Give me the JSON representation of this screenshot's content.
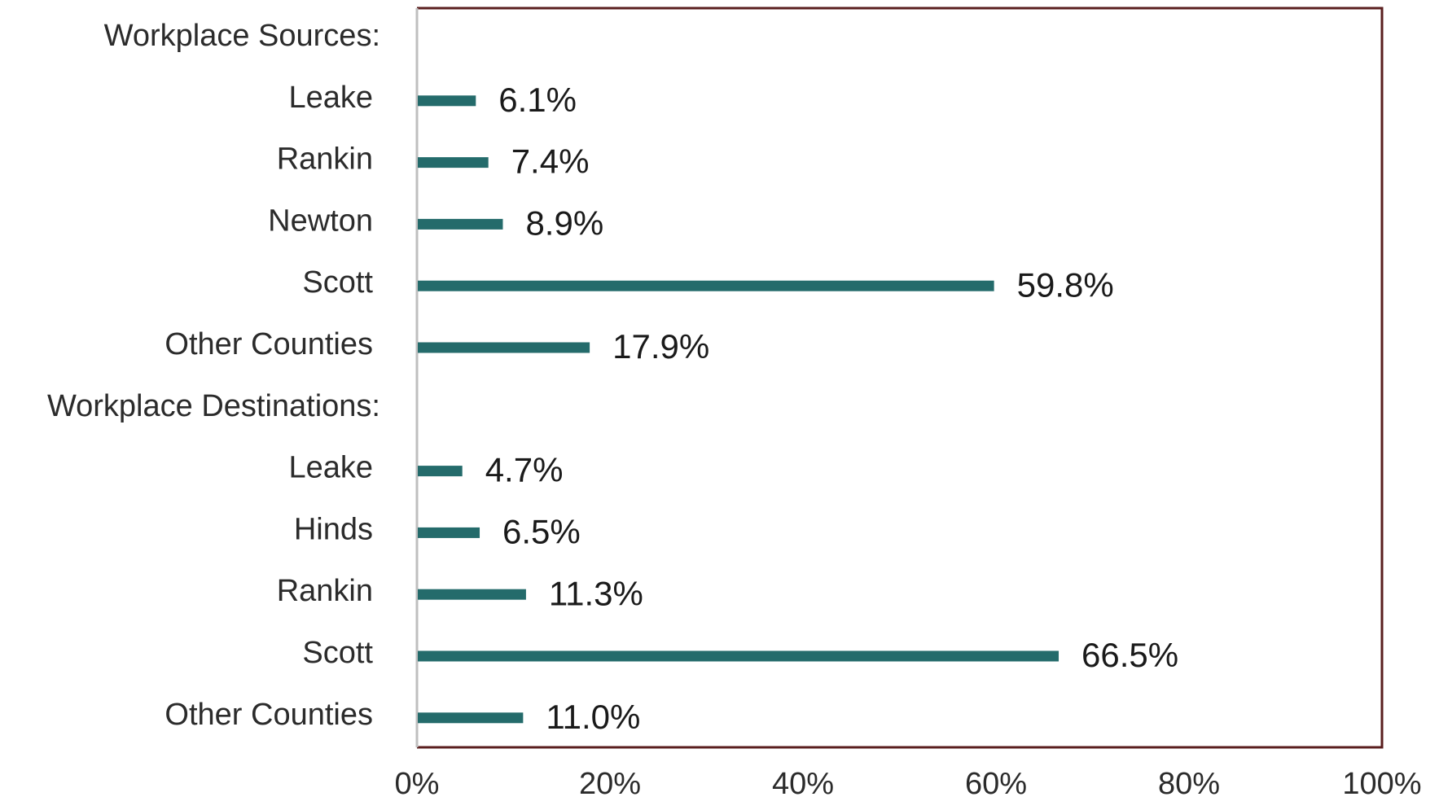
{
  "chart_data": {
    "type": "bar",
    "orientation": "horizontal",
    "rows": [
      {
        "label": "Workplace Sources:",
        "value": null,
        "value_label": ""
      },
      {
        "label": "Leake",
        "value": 6.1,
        "value_label": "6.1%"
      },
      {
        "label": "Rankin",
        "value": 7.4,
        "value_label": "7.4%"
      },
      {
        "label": "Newton",
        "value": 8.9,
        "value_label": "8.9%"
      },
      {
        "label": "Scott",
        "value": 59.8,
        "value_label": "59.8%"
      },
      {
        "label": "Other Counties",
        "value": 17.9,
        "value_label": "17.9%"
      },
      {
        "label": "Workplace Destinations:",
        "value": null,
        "value_label": ""
      },
      {
        "label": "Leake",
        "value": 4.7,
        "value_label": "4.7%"
      },
      {
        "label": "Hinds",
        "value": 6.5,
        "value_label": "6.5%"
      },
      {
        "label": "Rankin",
        "value": 11.3,
        "value_label": "11.3%"
      },
      {
        "label": "Scott",
        "value": 66.5,
        "value_label": "66.5%"
      },
      {
        "label": "Other Counties",
        "value": 11.0,
        "value_label": "11.0%"
      }
    ],
    "xlim": [
      0,
      100
    ],
    "x_ticks": [
      "0%",
      "20%",
      "40%",
      "60%",
      "80%",
      "100%"
    ],
    "title": "",
    "xlabel": "",
    "ylabel": "",
    "grid": false,
    "legend": "none",
    "colors": {
      "bar": "#246b6b",
      "frame": "#5a1e1e",
      "axis": "#bfbfbf"
    }
  }
}
